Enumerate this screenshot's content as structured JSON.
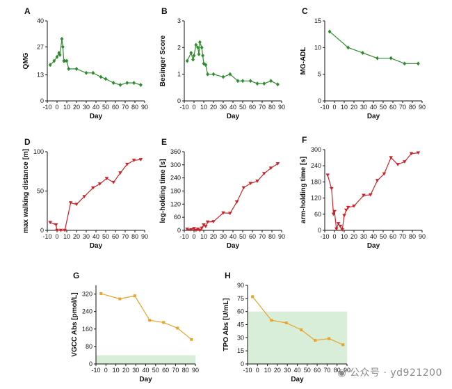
{
  "colors": {
    "green": "#2e8b2e",
    "red": "#cc2229",
    "orange": "#e8a32a",
    "shade": "#d9eed8"
  },
  "watermark": {
    "text": "公众号 · yd921200",
    "icon": "wechat-icon"
  },
  "chart_data": [
    {
      "panel": "A",
      "type": "line",
      "color": "green",
      "marker": "diamond",
      "xlabel": "Day",
      "ylabel": "QMG",
      "xlim": [
        -10,
        90
      ],
      "ylim": [
        0,
        40
      ],
      "xticks": [
        -10,
        0,
        10,
        20,
        30,
        40,
        50,
        60,
        70,
        80,
        90
      ],
      "xtick_labels": [
        "-10",
        "0",
        "10",
        "20",
        "30",
        "40",
        "50",
        "60",
        "70",
        "80",
        "90"
      ],
      "yticks": [
        0,
        13,
        27,
        40
      ],
      "ytick_labels": [
        "0",
        "13",
        "27",
        "40"
      ],
      "x": [
        -7,
        -3,
        0,
        2,
        3,
        5,
        6,
        7,
        8,
        10,
        12,
        20,
        30,
        37,
        45,
        50,
        58,
        65,
        72,
        79,
        86
      ],
      "y": [
        18,
        20,
        22,
        24,
        23,
        31,
        27,
        20,
        20,
        20,
        16,
        16,
        14,
        14,
        12,
        11,
        9,
        8,
        9,
        9,
        8
      ]
    },
    {
      "panel": "B",
      "type": "line",
      "color": "green",
      "marker": "diamond",
      "xlabel": "Day",
      "ylabel": "Besinger Score",
      "xlim": [
        -10,
        90
      ],
      "ylim": [
        0,
        3
      ],
      "xticks": [
        -10,
        0,
        10,
        20,
        30,
        40,
        50,
        60,
        70,
        80,
        90
      ],
      "xtick_labels": [
        "-10",
        "0",
        "10",
        "20",
        "30",
        "40",
        "50",
        "60",
        "70",
        "80",
        "90"
      ],
      "yticks": [
        0,
        1,
        2,
        3
      ],
      "ytick_labels": [
        "0",
        "1",
        "2",
        "3"
      ],
      "x": [
        -7,
        -3,
        -1,
        0,
        2,
        4,
        5,
        6,
        8,
        9,
        10,
        12,
        14,
        20,
        30,
        37,
        45,
        50,
        58,
        65,
        72,
        79,
        86
      ],
      "y": [
        1.5,
        1.8,
        1.55,
        1.7,
        2.1,
        2.0,
        1.75,
        2.2,
        2.0,
        1.7,
        1.4,
        1.35,
        1.0,
        1.0,
        0.9,
        1.0,
        0.75,
        0.75,
        0.75,
        0.65,
        0.65,
        0.75,
        0.62
      ]
    },
    {
      "panel": "C",
      "type": "line",
      "color": "green",
      "marker": "diamond",
      "xlabel": "Day",
      "ylabel": "MG-ADL",
      "xlim": [
        -10,
        90
      ],
      "ylim": [
        0,
        15
      ],
      "xticks": [
        -10,
        0,
        10,
        20,
        30,
        40,
        50,
        60,
        70,
        80,
        90
      ],
      "xtick_labels": [
        "-10",
        "0",
        "10",
        "20",
        "30",
        "40",
        "50",
        "60",
        "70",
        "80",
        "90"
      ],
      "yticks": [
        0,
        5,
        10,
        15
      ],
      "ytick_labels": [
        "0",
        "5",
        "10",
        "15"
      ],
      "x": [
        -5,
        14,
        29,
        44,
        58,
        72,
        86
      ],
      "y": [
        13,
        10,
        9,
        8,
        8,
        7,
        7
      ]
    },
    {
      "panel": "D",
      "type": "line",
      "color": "red",
      "marker": "triangle-down",
      "xlabel": "Day",
      "ylabel": "max walking distance [m]",
      "xlim": [
        -10,
        90
      ],
      "ylim": [
        0,
        100
      ],
      "xticks": [
        -10,
        0,
        10,
        20,
        30,
        40,
        50,
        60,
        70,
        80,
        90
      ],
      "xtick_labels": [
        "-10",
        "0",
        "10",
        "20",
        "30",
        "40",
        "50",
        "60",
        "70",
        "80",
        "90"
      ],
      "yticks": [
        0,
        50,
        100
      ],
      "ytick_labels": [
        "0",
        "50",
        "100"
      ],
      "x": [
        -7,
        -1,
        0,
        4,
        8,
        14,
        20,
        28,
        37,
        44,
        51,
        58,
        65,
        72,
        79,
        86
      ],
      "y": [
        10,
        7,
        0,
        0,
        0,
        35,
        33,
        43,
        54,
        59,
        66,
        61,
        73,
        84,
        89,
        90
      ]
    },
    {
      "panel": "E",
      "type": "line",
      "color": "red",
      "marker": "triangle-down",
      "xlabel": "Day",
      "ylabel": "leg-holding time [s]",
      "xlim": [
        -10,
        90
      ],
      "ylim": [
        0,
        360
      ],
      "xticks": [
        -10,
        0,
        10,
        20,
        30,
        40,
        50,
        60,
        70,
        80,
        90
      ],
      "xtick_labels": [
        "-10",
        "0",
        "10",
        "20",
        "30",
        "40",
        "50",
        "60",
        "70",
        "80",
        "90"
      ],
      "yticks": [
        0,
        60,
        120,
        180,
        240,
        300,
        360
      ],
      "ytick_labels": [
        "0",
        "60",
        "120",
        "180",
        "240",
        "300",
        "360"
      ],
      "x": [
        -7,
        -3,
        0,
        2,
        4,
        6,
        8,
        10,
        12,
        14,
        20,
        30,
        37,
        44,
        51,
        58,
        65,
        72,
        79,
        86
      ],
      "y": [
        5,
        3,
        8,
        0,
        5,
        0,
        10,
        25,
        18,
        38,
        40,
        80,
        78,
        130,
        195,
        215,
        225,
        260,
        285,
        305
      ]
    },
    {
      "panel": "F",
      "type": "line",
      "color": "red",
      "marker": "triangle-down",
      "xlabel": "Day",
      "ylabel": "arm-holding time [s]",
      "xlim": [
        -10,
        90
      ],
      "ylim": [
        0,
        300
      ],
      "xticks": [
        -10,
        0,
        10,
        20,
        30,
        40,
        50,
        60,
        70,
        80,
        90
      ],
      "xtick_labels": [
        "-10",
        "0",
        "10",
        "20",
        "30",
        "40",
        "50",
        "60",
        "70",
        "80",
        "90"
      ],
      "yticks": [
        0,
        60,
        120,
        180,
        240,
        300
      ],
      "ytick_labels": [
        "0",
        "60",
        "120",
        "180",
        "240",
        "300"
      ],
      "x": [
        -7,
        -3,
        -1,
        0,
        2,
        4,
        6,
        8,
        10,
        12,
        14,
        20,
        30,
        37,
        44,
        51,
        58,
        65,
        72,
        79,
        86
      ],
      "y": [
        205,
        155,
        60,
        70,
        5,
        25,
        15,
        2,
        55,
        75,
        85,
        90,
        130,
        132,
        185,
        210,
        270,
        245,
        255,
        285,
        288
      ]
    },
    {
      "panel": "G",
      "type": "line",
      "color": "orange",
      "marker": "square",
      "xlabel": "Day",
      "ylabel": "VGCC Abs [pmol/L]",
      "xlim": [
        -10,
        90
      ],
      "ylim": [
        0,
        360
      ],
      "xticks": [
        -10,
        0,
        10,
        20,
        30,
        40,
        50,
        60,
        70,
        80,
        90
      ],
      "xtick_labels": [
        "-10",
        "0",
        "10",
        "20",
        "30",
        "40",
        "50",
        "60",
        "70",
        "80",
        "90"
      ],
      "yticks": [
        0,
        80,
        160,
        240,
        320
      ],
      "ytick_labels": [
        "0",
        "80",
        "160",
        "240",
        "320"
      ],
      "x": [
        -5,
        14,
        29,
        44,
        58,
        72,
        86
      ],
      "y": [
        322,
        298,
        312,
        200,
        190,
        164,
        112
      ],
      "reference_band": [
        0,
        40
      ]
    },
    {
      "panel": "H",
      "type": "line",
      "color": "orange",
      "marker": "square",
      "xlabel": "Day",
      "ylabel": "TPO Abs [U/mL]",
      "xlim": [
        -10,
        90
      ],
      "ylim": [
        0,
        90
      ],
      "xticks": [
        -10,
        0,
        10,
        20,
        30,
        40,
        50,
        60,
        70,
        80,
        90
      ],
      "xtick_labels": [
        "-10",
        "0",
        "10",
        "20",
        "30",
        "40",
        "50",
        "60",
        "70",
        "80",
        "90"
      ],
      "yticks": [
        0,
        15,
        30,
        45,
        60,
        75,
        90
      ],
      "ytick_labels": [
        "0",
        "15",
        "30",
        "45",
        "60",
        "75",
        "90"
      ],
      "x": [
        -5,
        14,
        29,
        44,
        58,
        72,
        86
      ],
      "y": [
        77,
        50,
        47,
        39,
        27,
        29,
        22
      ],
      "reference_band": [
        0,
        60
      ]
    }
  ]
}
